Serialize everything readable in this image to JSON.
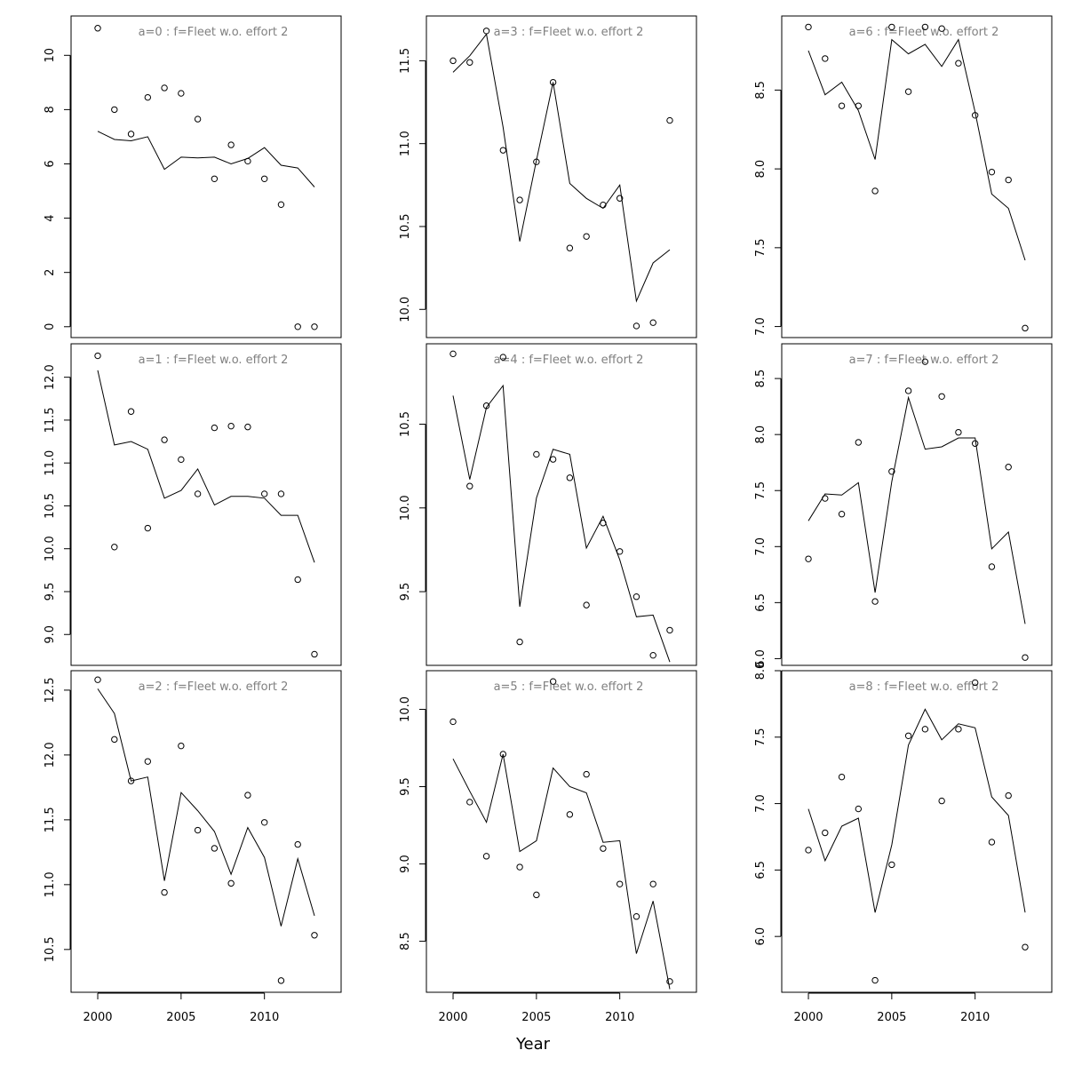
{
  "figure": {
    "xlabel": "Year"
  },
  "chart_data": [
    {
      "type": "line",
      "title": "a=0  :  f=Fleet w.o. effort 2",
      "x": [
        2000,
        2001,
        2002,
        2003,
        2004,
        2005,
        2006,
        2007,
        2008,
        2009,
        2010,
        2011,
        2012,
        2013
      ],
      "series": [
        {
          "values": [
            11.0,
            8.0,
            7.1,
            8.45,
            8.8,
            8.6,
            7.65,
            5.45,
            6.7,
            6.1,
            5.45,
            4.5,
            0.0,
            0.0
          ],
          "style": "points"
        },
        {
          "values": [
            7.2,
            6.9,
            6.85,
            7.0,
            5.8,
            6.25,
            6.22,
            6.25,
            6.0,
            6.2,
            6.6,
            5.95,
            5.85,
            5.15
          ],
          "style": "line"
        }
      ],
      "xlim": [
        1998.4,
        2014.6
      ],
      "ylim": [
        -0.4,
        11.45
      ],
      "yticks": [
        "0",
        "2",
        "4",
        "6",
        "8",
        "10"
      ],
      "xticks": [
        "2000",
        "2005",
        "2010"
      ]
    },
    {
      "type": "line",
      "title": "a=3  :  f=Fleet w.o. effort 2",
      "x": [
        2000,
        2001,
        2002,
        2003,
        2004,
        2005,
        2006,
        2007,
        2008,
        2009,
        2010,
        2011,
        2012,
        2013
      ],
      "series": [
        {
          "values": [
            11.5,
            11.49,
            11.68,
            10.96,
            10.66,
            10.89,
            11.37,
            10.37,
            10.44,
            10.63,
            10.67,
            9.9,
            9.92,
            11.14
          ],
          "style": "points"
        },
        {
          "values": [
            11.43,
            11.53,
            11.66,
            11.1,
            10.41,
            10.9,
            11.37,
            10.76,
            10.67,
            10.61,
            10.75,
            10.05,
            10.28,
            10.36
          ],
          "style": "line"
        }
      ],
      "xlim": [
        1998.4,
        2014.6
      ],
      "ylim": [
        9.83,
        11.77
      ],
      "yticks": [
        "10.0",
        "10.5",
        "11.0",
        "11.5"
      ],
      "xticks": [
        "2000",
        "2005",
        "2010"
      ]
    },
    {
      "type": "line",
      "title": "a=6  :  f=Fleet w.o. effort 2",
      "x": [
        2000,
        2001,
        2002,
        2003,
        2004,
        2005,
        2006,
        2007,
        2008,
        2009,
        2010,
        2011,
        2012,
        2013
      ],
      "series": [
        {
          "values": [
            8.9,
            8.7,
            8.4,
            8.4,
            7.86,
            8.9,
            8.49,
            8.9,
            8.89,
            8.67,
            8.34,
            7.98,
            7.93,
            6.99
          ],
          "style": "points"
        },
        {
          "values": [
            8.75,
            8.47,
            8.55,
            8.37,
            8.06,
            8.82,
            8.73,
            8.79,
            8.65,
            8.82,
            8.36,
            7.84,
            7.75,
            7.42
          ],
          "style": "line"
        }
      ],
      "xlim": [
        1998.4,
        2014.6
      ],
      "ylim": [
        6.93,
        8.97
      ],
      "yticks": [
        "7.0",
        "7.5",
        "8.0",
        "8.5"
      ],
      "xticks": [
        "2000",
        "2005",
        "2010"
      ]
    },
    {
      "type": "line",
      "title": "a=1  :  f=Fleet w.o. effort 2",
      "x": [
        2000,
        2001,
        2002,
        2003,
        2004,
        2005,
        2006,
        2007,
        2008,
        2009,
        2010,
        2011,
        2012,
        2013
      ],
      "series": [
        {
          "values": [
            12.25,
            10.02,
            11.6,
            10.24,
            11.27,
            11.04,
            10.64,
            11.41,
            11.43,
            11.42,
            10.64,
            10.64,
            9.64,
            8.77
          ],
          "style": "points"
        },
        {
          "values": [
            12.08,
            11.21,
            11.25,
            11.16,
            10.59,
            10.68,
            10.93,
            10.51,
            10.61,
            10.61,
            10.59,
            10.39,
            10.39,
            9.84
          ],
          "style": "line"
        }
      ],
      "xlim": [
        1998.4,
        2014.6
      ],
      "ylim": [
        8.64,
        12.39
      ],
      "yticks": [
        "9.0",
        "9.5",
        "10.0",
        "10.5",
        "11.0",
        "11.5",
        "12.0"
      ],
      "xticks": [
        "2000",
        "2005",
        "2010"
      ]
    },
    {
      "type": "line",
      "title": "a=4  :  f=Fleet w.o. effort 2",
      "x": [
        2000,
        2001,
        2002,
        2003,
        2004,
        2005,
        2006,
        2007,
        2008,
        2009,
        2010,
        2011,
        2012,
        2013
      ],
      "series": [
        {
          "values": [
            10.92,
            10.13,
            10.61,
            10.9,
            9.2,
            10.32,
            10.29,
            10.18,
            9.42,
            9.91,
            9.74,
            9.47,
            9.12,
            9.27
          ],
          "style": "points"
        },
        {
          "values": [
            10.67,
            10.17,
            10.6,
            10.73,
            9.41,
            10.06,
            10.35,
            10.32,
            9.76,
            9.95,
            9.69,
            9.35,
            9.36,
            9.08
          ],
          "style": "line"
        }
      ],
      "xlim": [
        1998.4,
        2014.6
      ],
      "ylim": [
        9.06,
        10.98
      ],
      "yticks": [
        "9.5",
        "10.0",
        "10.5"
      ],
      "xticks": [
        "2000",
        "2005",
        "2010"
      ]
    },
    {
      "type": "line",
      "title": "a=7  :  f=Fleet w.o. effort 2",
      "x": [
        2000,
        2001,
        2002,
        2003,
        2004,
        2005,
        2006,
        2007,
        2008,
        2009,
        2010,
        2011,
        2012,
        2013
      ],
      "series": [
        {
          "values": [
            6.89,
            7.43,
            7.29,
            7.93,
            6.51,
            7.67,
            8.39,
            8.65,
            8.34,
            8.02,
            7.92,
            6.82,
            7.71,
            6.01
          ],
          "style": "points"
        },
        {
          "values": [
            7.23,
            7.47,
            7.46,
            7.57,
            6.59,
            7.58,
            8.33,
            7.87,
            7.89,
            7.97,
            7.97,
            6.98,
            7.13,
            6.31
          ],
          "style": "line"
        }
      ],
      "xlim": [
        1998.4,
        2014.6
      ],
      "ylim": [
        5.94,
        8.81
      ],
      "yticks": [
        "6.0",
        "6.5",
        "7.0",
        "7.5",
        "8.0",
        "8.5"
      ],
      "xticks": [
        "2000",
        "2005",
        "2010"
      ]
    },
    {
      "type": "line",
      "title": "a=2  :  f=Fleet w.o. effort 2",
      "x": [
        2000,
        2001,
        2002,
        2003,
        2004,
        2005,
        2006,
        2007,
        2008,
        2009,
        2010,
        2011,
        2012,
        2013
      ],
      "series": [
        {
          "values": [
            12.58,
            12.12,
            11.8,
            11.95,
            10.94,
            12.07,
            11.42,
            11.28,
            11.01,
            11.69,
            11.48,
            10.26,
            11.31,
            10.61
          ],
          "style": "points"
        },
        {
          "values": [
            12.51,
            12.32,
            11.8,
            11.83,
            11.03,
            11.71,
            11.57,
            11.41,
            11.08,
            11.44,
            11.21,
            10.68,
            11.2,
            10.76
          ],
          "style": "line"
        }
      ],
      "xlim": [
        1998.4,
        2014.6
      ],
      "ylim": [
        10.17,
        12.65
      ],
      "yticks": [
        "10.5",
        "11.0",
        "11.5",
        "12.0",
        "12.5"
      ],
      "xticks": [
        "2000",
        "2005",
        "2010"
      ]
    },
    {
      "type": "line",
      "title": "a=5  :  f=Fleet w.o. effort 2",
      "x": [
        2000,
        2001,
        2002,
        2003,
        2004,
        2005,
        2006,
        2007,
        2008,
        2009,
        2010,
        2011,
        2012,
        2013
      ],
      "series": [
        {
          "values": [
            9.92,
            9.4,
            9.05,
            9.71,
            8.98,
            8.8,
            10.18,
            9.32,
            9.58,
            9.1,
            8.87,
            8.66,
            8.87,
            8.24
          ],
          "style": "points"
        },
        {
          "values": [
            9.68,
            9.47,
            9.27,
            9.71,
            9.08,
            9.15,
            9.62,
            9.5,
            9.46,
            9.14,
            9.15,
            8.42,
            8.76,
            8.19
          ],
          "style": "line"
        }
      ],
      "xlim": [
        1998.4,
        2014.6
      ],
      "ylim": [
        8.17,
        10.25
      ],
      "yticks": [
        "8.5",
        "9.0",
        "9.5",
        "10.0"
      ],
      "xticks": [
        "2000",
        "2005",
        "2010"
      ]
    },
    {
      "type": "line",
      "title": "a=8  :  f=Fleet w.o. effort 2",
      "x": [
        2000,
        2001,
        2002,
        2003,
        2004,
        2005,
        2006,
        2007,
        2008,
        2009,
        2010,
        2011,
        2012,
        2013
      ],
      "series": [
        {
          "values": [
            6.65,
            6.78,
            7.2,
            6.96,
            5.67,
            6.54,
            7.51,
            7.56,
            7.02,
            7.56,
            7.91,
            6.71,
            7.06,
            5.92
          ],
          "style": "points"
        },
        {
          "values": [
            6.96,
            6.57,
            6.83,
            6.89,
            6.18,
            6.69,
            7.44,
            7.71,
            7.48,
            7.6,
            7.57,
            7.05,
            6.91,
            6.18
          ],
          "style": "line"
        }
      ],
      "xlim": [
        1998.4,
        2014.6
      ],
      "ylim": [
        5.58,
        8.0
      ],
      "yticks": [
        "6.0",
        "6.5",
        "7.0",
        "7.5",
        "8.0"
      ],
      "xticks": [
        "2000",
        "2005",
        "2010"
      ]
    }
  ]
}
